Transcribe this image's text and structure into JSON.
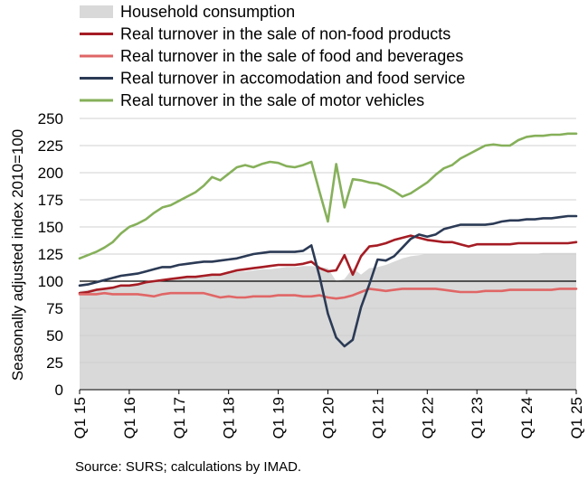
{
  "chart_data": {
    "type": "line",
    "ylabel": "Seasonally adjusted index 2010=100",
    "ylim": [
      0,
      250
    ],
    "yticks": [
      0,
      25,
      50,
      75,
      100,
      125,
      150,
      175,
      200,
      225,
      250
    ],
    "x_tick_labels": [
      "Q1 15",
      "Q1 16",
      "Q1 17",
      "Q1 18",
      "Q1 19",
      "Q1 20",
      "Q1 21",
      "Q1 22",
      "Q1 23",
      "Q1 24",
      "Q1 25"
    ],
    "x_months": [
      "2015-01",
      "2015-03",
      "2015-05",
      "2015-07",
      "2015-09",
      "2015-11",
      "2016-01",
      "2016-03",
      "2016-05",
      "2016-07",
      "2016-09",
      "2016-11",
      "2017-01",
      "2017-03",
      "2017-05",
      "2017-07",
      "2017-09",
      "2017-11",
      "2018-01",
      "2018-03",
      "2018-05",
      "2018-07",
      "2018-09",
      "2018-11",
      "2019-01",
      "2019-03",
      "2019-05",
      "2019-07",
      "2019-09",
      "2019-11",
      "2020-01",
      "2020-03",
      "2020-05",
      "2020-07",
      "2020-09",
      "2020-11",
      "2021-01",
      "2021-03",
      "2021-05",
      "2021-07",
      "2021-09",
      "2021-11",
      "2022-01",
      "2022-03",
      "2022-05",
      "2022-07",
      "2022-09",
      "2022-11",
      "2023-01",
      "2023-03",
      "2023-05",
      "2023-07",
      "2023-09",
      "2023-11",
      "2024-01",
      "2024-03",
      "2024-05",
      "2024-07",
      "2024-09",
      "2024-11",
      "2025-01"
    ],
    "reference_line": 100,
    "grid": true,
    "legend_position": "top",
    "series": [
      {
        "name": "Household consumption",
        "type": "area",
        "color": "#d9d9d9",
        "values": [
          91,
          92,
          93,
          94,
          95,
          96,
          97,
          98,
          99,
          100,
          101,
          102,
          103,
          104,
          105,
          106,
          106,
          107,
          108,
          109,
          109,
          110,
          111,
          111,
          112,
          113,
          113,
          114,
          114,
          113,
          112,
          100,
          102,
          112,
          106,
          112,
          113,
          115,
          118,
          121,
          123,
          124,
          125,
          125,
          125,
          125,
          125,
          125,
          125,
          125,
          125,
          125,
          125,
          125,
          125,
          125,
          126,
          126,
          126,
          126,
          126
        ]
      },
      {
        "name": "Real turnover in the sale of non-food products",
        "type": "line",
        "color": "#a51c24",
        "values": [
          89,
          90,
          92,
          93,
          94,
          96,
          96,
          97,
          99,
          100,
          101,
          102,
          103,
          104,
          104,
          105,
          106,
          106,
          108,
          110,
          111,
          112,
          113,
          114,
          115,
          115,
          115,
          116,
          118,
          112,
          109,
          110,
          124,
          106,
          123,
          132,
          133,
          135,
          138,
          140,
          142,
          140,
          138,
          137,
          136,
          136,
          134,
          132,
          134,
          134,
          134,
          134,
          134,
          135,
          135,
          135,
          135,
          135,
          135,
          135,
          136
        ]
      },
      {
        "name": "Real turnover in the sale of food and beverages",
        "type": "line",
        "color": "#e06666",
        "values": [
          88,
          88,
          88,
          89,
          88,
          88,
          88,
          88,
          87,
          86,
          88,
          89,
          89,
          89,
          89,
          89,
          87,
          85,
          86,
          85,
          85,
          86,
          86,
          86,
          87,
          87,
          87,
          86,
          86,
          87,
          85,
          84,
          85,
          87,
          90,
          93,
          92,
          91,
          92,
          93,
          93,
          93,
          93,
          93,
          92,
          91,
          90,
          90,
          90,
          91,
          91,
          91,
          92,
          92,
          92,
          92,
          92,
          92,
          93,
          93,
          93
        ]
      },
      {
        "name": "Real turnover in accomodation and food service",
        "type": "line",
        "color": "#2b3a55",
        "values": [
          96,
          97,
          99,
          101,
          103,
          105,
          106,
          107,
          109,
          111,
          113,
          113,
          115,
          116,
          117,
          118,
          118,
          119,
          120,
          121,
          123,
          125,
          126,
          127,
          127,
          127,
          127,
          128,
          133,
          104,
          70,
          48,
          40,
          46,
          76,
          97,
          120,
          119,
          123,
          131,
          139,
          143,
          141,
          143,
          148,
          150,
          152,
          152,
          152,
          152,
          153,
          155,
          156,
          156,
          157,
          157,
          158,
          158,
          159,
          160,
          160
        ]
      },
      {
        "name": "Real turnover in the sale of motor vehicles",
        "type": "line",
        "color": "#86b05a",
        "values": [
          121,
          124,
          127,
          131,
          136,
          144,
          150,
          153,
          157,
          163,
          168,
          170,
          174,
          178,
          182,
          188,
          196,
          193,
          199,
          205,
          207,
          205,
          208,
          210,
          209,
          206,
          205,
          207,
          210,
          182,
          155,
          208,
          168,
          194,
          193,
          191,
          190,
          187,
          183,
          178,
          181,
          186,
          191,
          198,
          204,
          207,
          213,
          217,
          221,
          225,
          226,
          225,
          225,
          230,
          233,
          234,
          234,
          235,
          235,
          236,
          236
        ]
      }
    ]
  },
  "source": "Source: SURS; calculations by IMAD."
}
